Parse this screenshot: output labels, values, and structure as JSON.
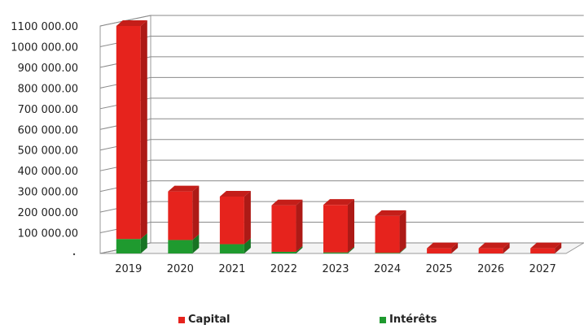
{
  "chart_data": {
    "type": "bar",
    "stacked": true,
    "categories": [
      "2019",
      "2020",
      "2021",
      "2022",
      "2023",
      "2024",
      "2025",
      "2026",
      "2027"
    ],
    "series": [
      {
        "name": "Intérêts",
        "color": "#1f9a2f",
        "values": [
          70000,
          65000,
          45000,
          8000,
          5000,
          3000,
          0,
          0,
          0
        ]
      },
      {
        "name": "Capital",
        "color": "#e6231d",
        "values": [
          1030000,
          235000,
          230000,
          225000,
          230000,
          178000,
          25000,
          25000,
          25000
        ]
      }
    ],
    "yticks": [
      "",
      "100 000.00",
      "200 000.00",
      "300 000.00",
      "400 000.00",
      "500 000.00",
      "600 000.00",
      "700 000.00",
      "800 000.00",
      "900 000.00",
      "1000 000.00",
      "1100 000.00"
    ],
    "ylim": [
      0,
      1100000
    ],
    "grid": true,
    "legend_position": "bottom"
  }
}
